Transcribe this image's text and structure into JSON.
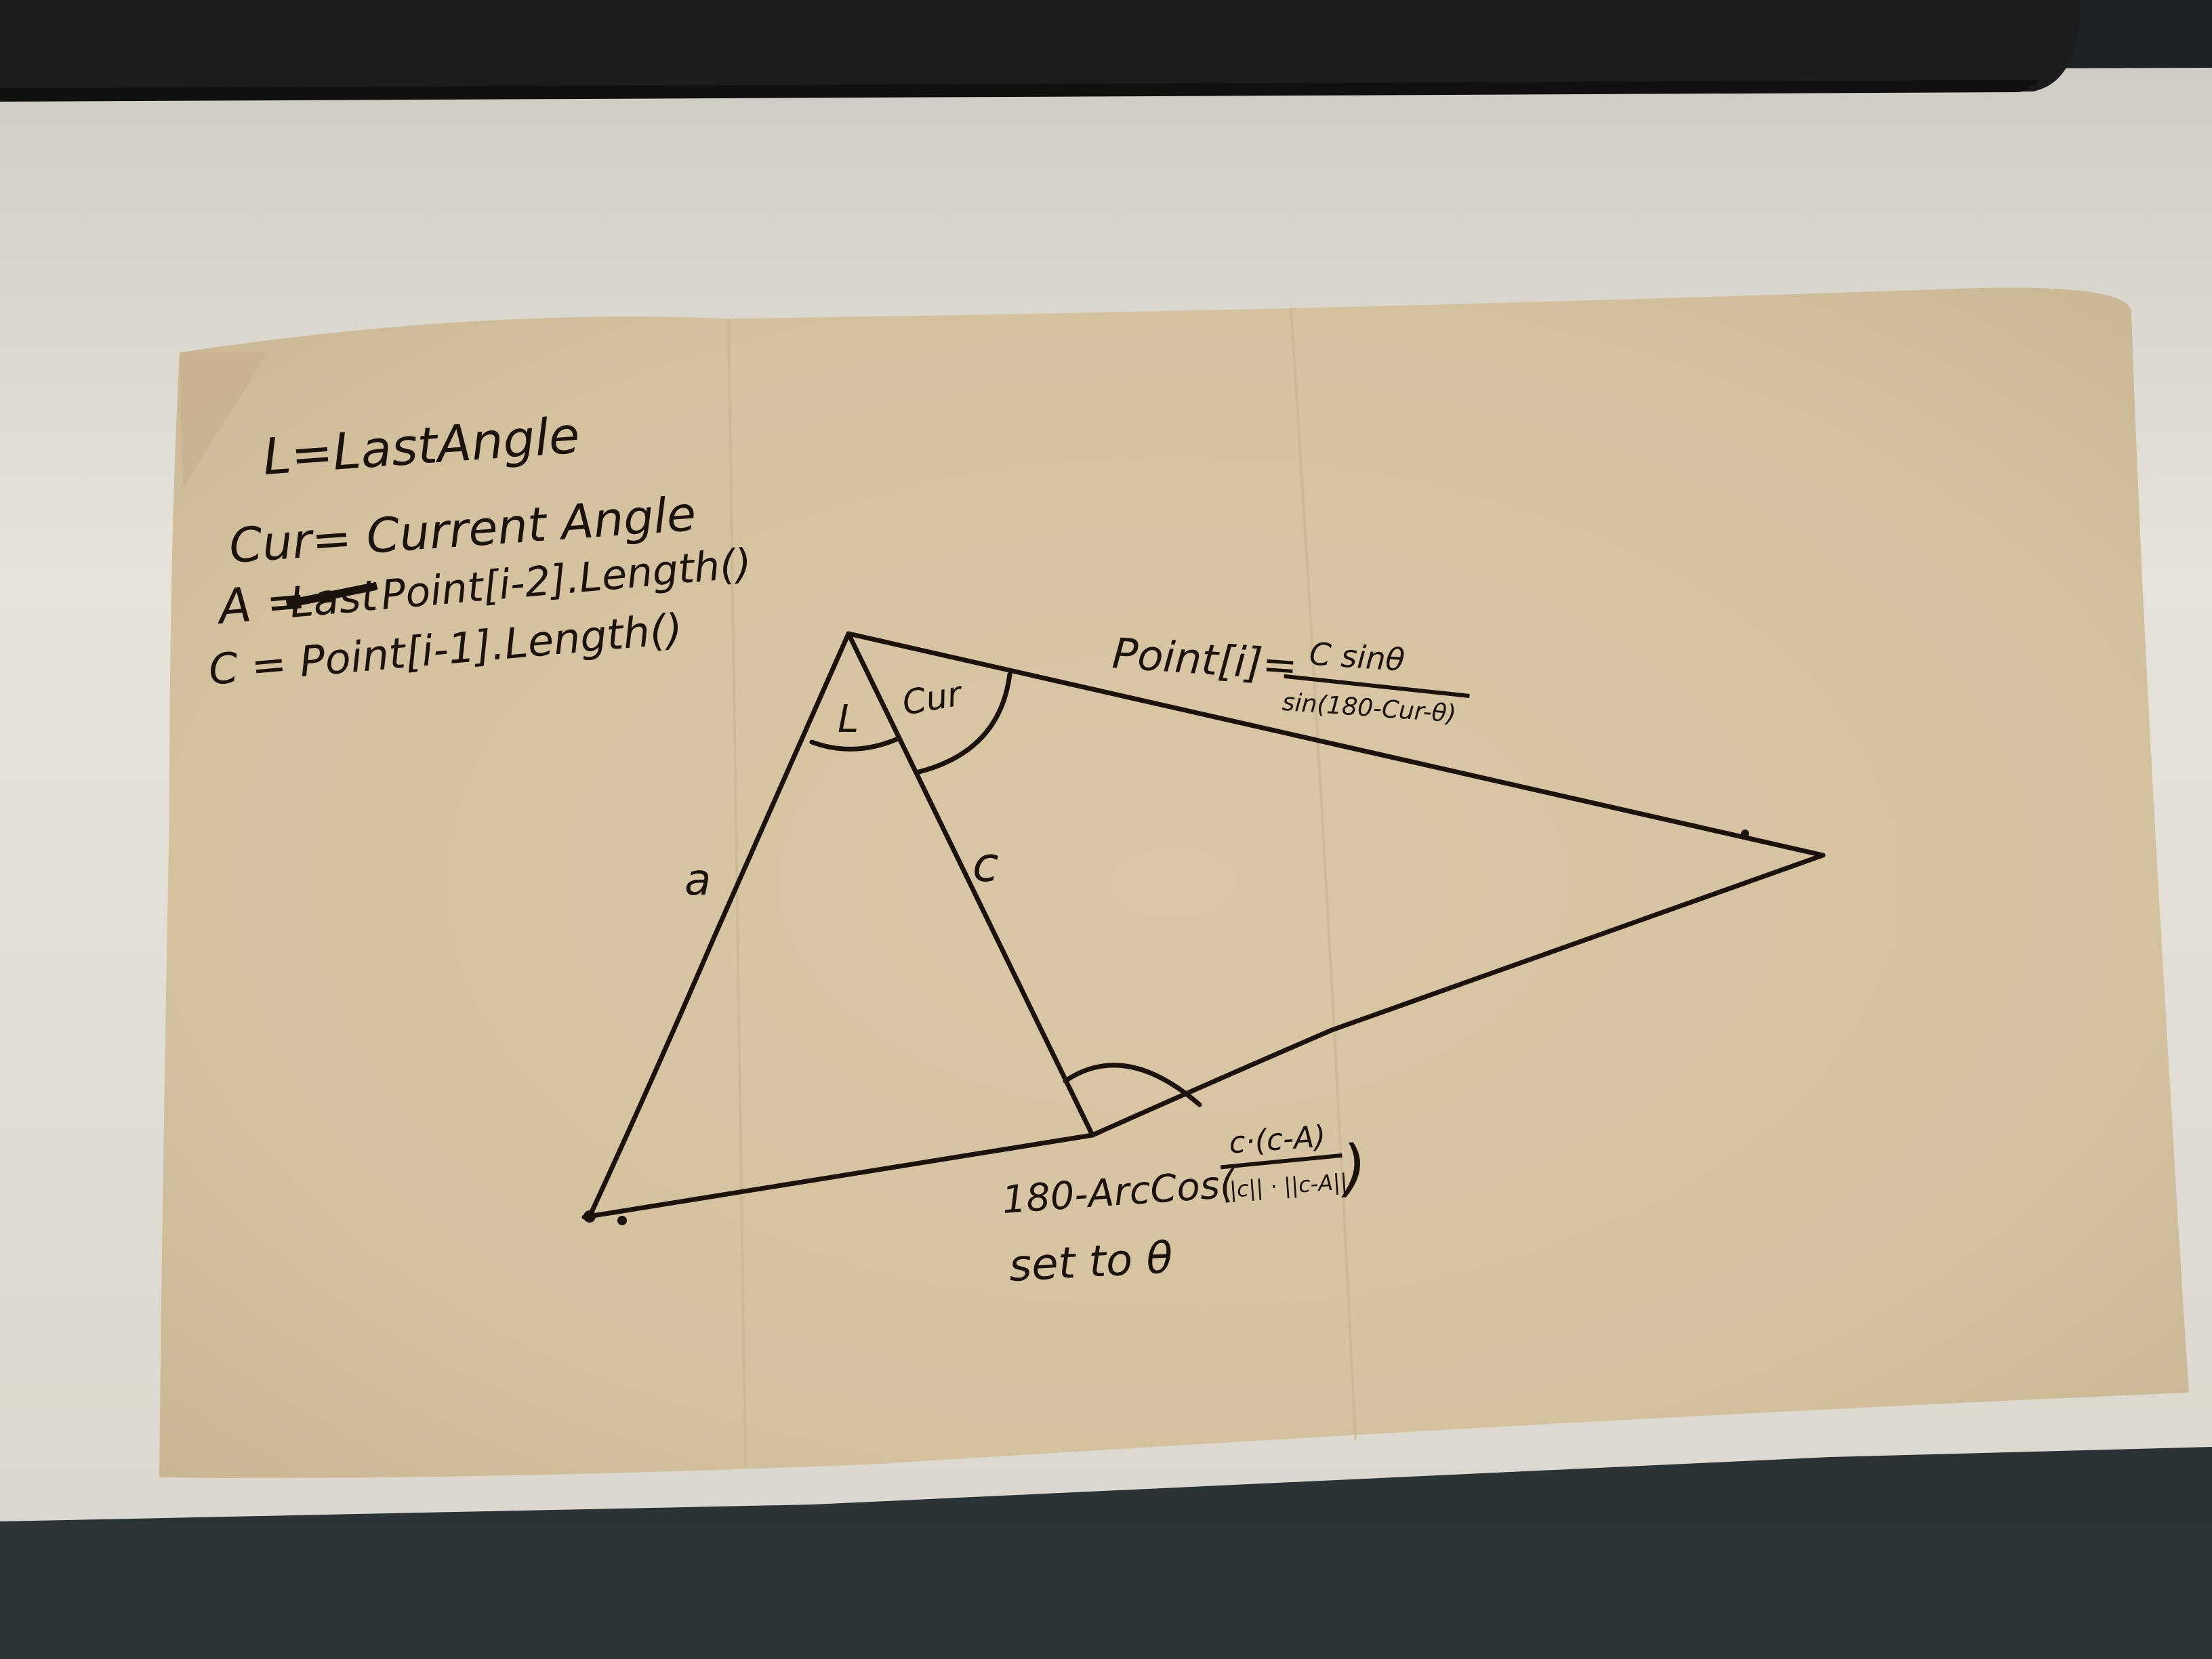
{
  "notes": {
    "line1": "L=LastAngle",
    "line2": "Cur= Current Angle",
    "line3_prefix": "A =",
    "line3_struck": "Last",
    "line3_rest": "Point[i-2].Length()",
    "line4": "C = Point[i-1].Length()"
  },
  "diagram": {
    "angle_label_L": "L",
    "angle_label_cur": "Cur",
    "side_label_a": "a",
    "side_label_c": "c",
    "point_label": "Point[i]=",
    "point_formula_numerator": "C sinθ",
    "point_formula_denominator": "sin(180-Cur-θ)",
    "theta_prefix": "180-ArcCos(",
    "theta_numerator": "c·(c-A)",
    "theta_denominator": "||c|| · ||c-A||",
    "theta_suffix": ")",
    "theta_note": "set to θ"
  },
  "colors": {
    "ink": "#1c120c",
    "napkin": "#d6c4a2",
    "desk": "#e3e0d8",
    "keyboard": "#1b1c1c",
    "floor": "#2a3033"
  }
}
